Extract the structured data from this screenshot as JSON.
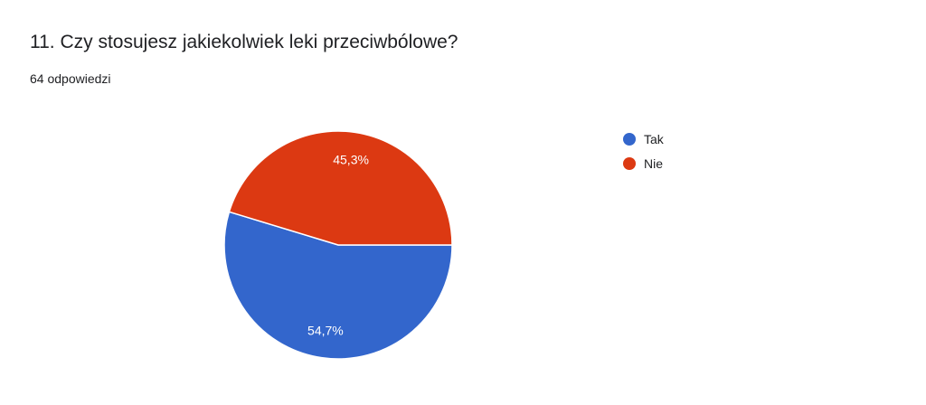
{
  "header": {
    "title": "11. Czy stosujesz jakiekolwiek leki przeciwbólowe?",
    "response_count": "64 odpowiedzi"
  },
  "chart_data": {
    "type": "pie",
    "title": "11. Czy stosujesz jakiekolwiek leki przeciwbólowe?",
    "categories": [
      "Tak",
      "Nie"
    ],
    "values": [
      54.7,
      45.3
    ],
    "labels": [
      "54,7%",
      "45,3%"
    ],
    "colors": [
      "#3366cc",
      "#dc3912"
    ],
    "legend_position": "right"
  }
}
